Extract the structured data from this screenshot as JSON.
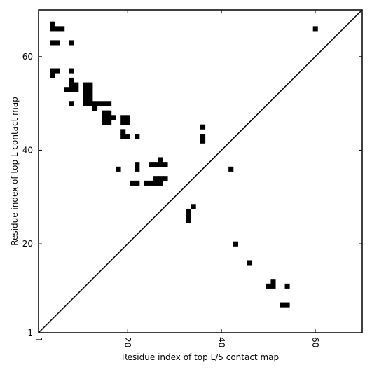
{
  "chart_data": {
    "type": "heatmap",
    "title": "",
    "xlabel": "Residue index of top L/5 contact map",
    "ylabel": "Residue index of top L contact map",
    "xlim": [
      1,
      70
    ],
    "ylim": [
      1,
      70
    ],
    "x_ticks": [
      1,
      20,
      40,
      60
    ],
    "y_ticks": [
      1,
      20,
      40,
      60
    ],
    "x_tick_labels": [
      "1",
      "20",
      "40",
      "60"
    ],
    "y_tick_labels": [
      "1",
      "20",
      "40",
      "60"
    ],
    "diagonal": true,
    "cell_color": "#000000",
    "upper_triangle_contacts": [
      [
        4,
        67
      ],
      [
        4,
        66
      ],
      [
        5,
        66
      ],
      [
        6,
        66
      ],
      [
        4,
        63
      ],
      [
        5,
        63
      ],
      [
        8,
        63
      ],
      [
        4,
        57
      ],
      [
        5,
        57
      ],
      [
        4,
        56
      ],
      [
        8,
        57
      ],
      [
        8,
        55
      ],
      [
        8,
        54
      ],
      [
        9,
        54
      ],
      [
        7,
        53
      ],
      [
        8,
        53
      ],
      [
        9,
        53
      ],
      [
        8,
        50
      ],
      [
        11,
        54
      ],
      [
        12,
        54
      ],
      [
        11,
        53
      ],
      [
        12,
        53
      ],
      [
        11,
        52
      ],
      [
        12,
        52
      ],
      [
        11,
        51
      ],
      [
        12,
        51
      ],
      [
        11,
        50
      ],
      [
        12,
        50
      ],
      [
        13,
        50
      ],
      [
        14,
        50
      ],
      [
        15,
        50
      ],
      [
        16,
        50
      ],
      [
        13,
        49
      ],
      [
        15,
        48
      ],
      [
        16,
        48
      ],
      [
        15,
        47
      ],
      [
        16,
        47
      ],
      [
        17,
        47
      ],
      [
        15,
        46
      ],
      [
        16,
        46
      ],
      [
        19,
        47
      ],
      [
        20,
        47
      ],
      [
        19,
        46
      ],
      [
        20,
        46
      ],
      [
        19,
        44
      ],
      [
        19,
        43
      ],
      [
        20,
        43
      ],
      [
        22,
        43
      ],
      [
        18,
        36
      ],
      [
        22,
        37
      ],
      [
        22,
        36
      ],
      [
        21,
        33
      ],
      [
        22,
        33
      ],
      [
        24,
        33
      ],
      [
        25,
        33
      ],
      [
        26,
        33
      ],
      [
        27,
        33
      ],
      [
        25,
        37
      ],
      [
        26,
        37
      ],
      [
        27,
        37
      ],
      [
        28,
        37
      ],
      [
        27,
        38
      ],
      [
        26,
        34
      ],
      [
        27,
        34
      ],
      [
        28,
        34
      ],
      [
        36,
        45
      ],
      [
        36,
        43
      ],
      [
        36,
        42
      ],
      [
        34,
        28
      ],
      [
        33,
        27
      ],
      [
        33,
        26
      ],
      [
        33,
        25
      ],
      [
        42,
        36
      ]
    ],
    "lower_triangle_contacts": [
      [
        60,
        66
      ],
      [
        43,
        20
      ],
      [
        46,
        16
      ],
      [
        50,
        11
      ],
      [
        51,
        11
      ],
      [
        51,
        12
      ],
      [
        54,
        11
      ],
      [
        53,
        7
      ],
      [
        54,
        7
      ]
    ]
  }
}
